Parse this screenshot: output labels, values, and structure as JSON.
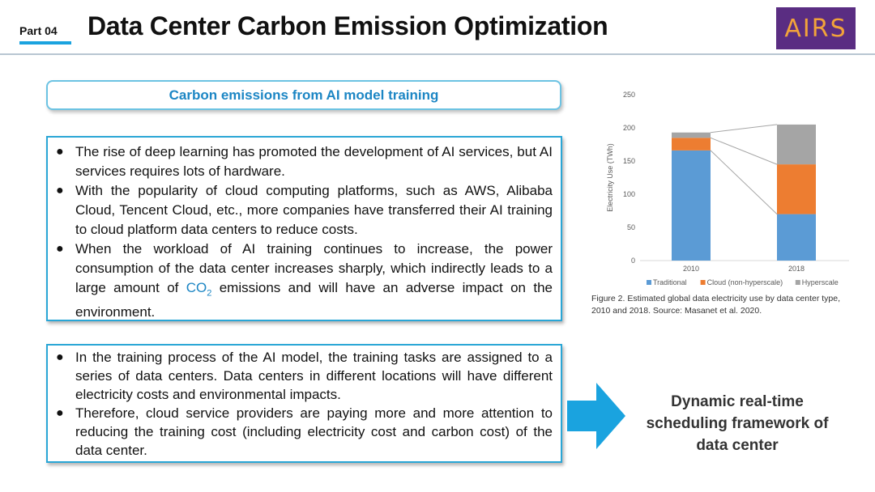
{
  "header": {
    "part_label": "Part 04",
    "title": "Data Center Carbon Emission Optimization",
    "logo_text": "AIRS"
  },
  "subtitle": "Carbon emissions from AI model training",
  "box1": {
    "bullet_1": "The rise of deep learning has promoted the development of AI services, but AI services requires lots of hardware.",
    "bullet_2": "With the popularity of cloud computing platforms, such as AWS, Alibaba Cloud, Tencent Cloud, etc., more companies have transferred their AI training to cloud platform data centers to reduce costs.",
    "bullet_3_before": "When the workload of AI training continues to increase, the power consumption of the data center increases sharply, which indirectly leads to a large amount of ",
    "bullet_3_co": "CO",
    "bullet_3_sub": "2",
    "bullet_3_after": " emissions and will have an adverse impact on the environment."
  },
  "box2": {
    "bullet_1": "In the training process of the AI model, the training tasks are assigned to a series of data centers. Data centers in different locations will have different electricity costs and environmental impacts.",
    "bullet_2": "Therefore, cloud service providers are paying more and more attention to reducing the training cost (including electricity cost and carbon cost) of the data center."
  },
  "bullet_symbol": "●",
  "dynamic_text": "Dynamic real-time scheduling framework of data center",
  "figure_caption": "Figure 2. Estimated global data electricity use by data center type, 2010 and 2018. Source: Masanet et al. 2020.",
  "colors": {
    "accent_blue": "#1aa3df",
    "box_border": "#2aa6d6",
    "traditional": "#5b9bd5",
    "cloud": "#ed7d31",
    "hyperscale": "#a5a5a5",
    "logo_bg": "#5a2d82",
    "logo_text": "#f2a33a"
  },
  "icons": {
    "arrow": "right-arrow-icon"
  },
  "chart_data": {
    "type": "bar",
    "stacked": true,
    "categories": [
      "2010",
      "2018"
    ],
    "series": [
      {
        "name": "Traditional",
        "values": [
          166,
          70
        ],
        "color": "#5b9bd5"
      },
      {
        "name": "Cloud (non-hyperscale)",
        "values": [
          19,
          75
        ],
        "color": "#ed7d31"
      },
      {
        "name": "Hyperscale",
        "values": [
          8,
          60
        ],
        "color": "#a5a5a5"
      }
    ],
    "ylabel": "Electricity Use (TWh)",
    "xlabel": "",
    "ylim": [
      0,
      250
    ],
    "yticks": [
      0,
      50,
      100,
      150,
      200,
      250
    ],
    "grid": false,
    "legend": "bottom",
    "connector_lines": true
  }
}
